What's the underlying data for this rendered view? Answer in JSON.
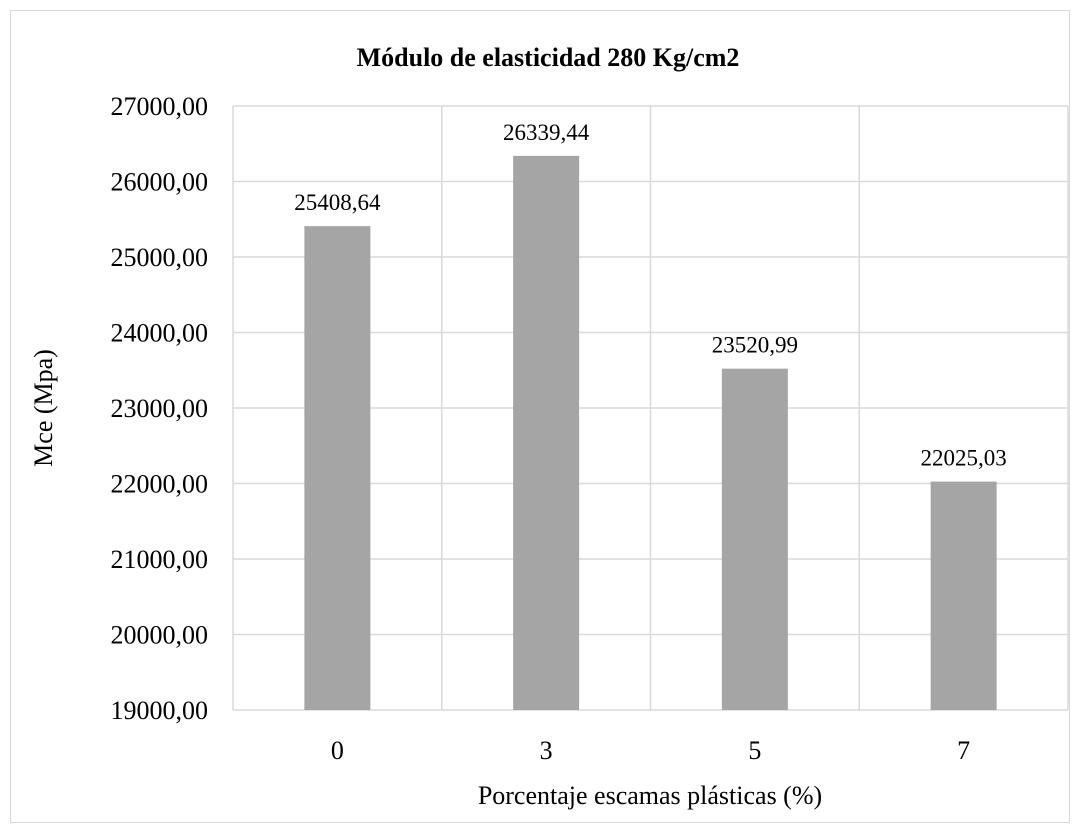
{
  "chart_data": {
    "type": "bar",
    "title": "Módulo de elasticidad 280 Kg/cm2",
    "xlabel": "Porcentaje escamas plásticas (%)",
    "ylabel": "Mce (Mpa)",
    "categories": [
      "0",
      "3",
      "5",
      "7"
    ],
    "values": [
      25408.64,
      26339.44,
      23520.99,
      22025.03
    ],
    "value_labels": [
      "25408,64",
      "26339,44",
      "23520,99",
      "22025,03"
    ],
    "ylim": [
      19000,
      27000
    ],
    "yticks": [
      19000,
      20000,
      21000,
      22000,
      23000,
      24000,
      25000,
      26000,
      27000
    ],
    "ytick_labels": [
      "19000,00",
      "20000,00",
      "21000,00",
      "22000,00",
      "23000,00",
      "24000,00",
      "25000,00",
      "26000,00",
      "27000,00"
    ],
    "grid": true,
    "bar_color": "#a5a5a5",
    "grid_color": "#d9d9d9"
  }
}
